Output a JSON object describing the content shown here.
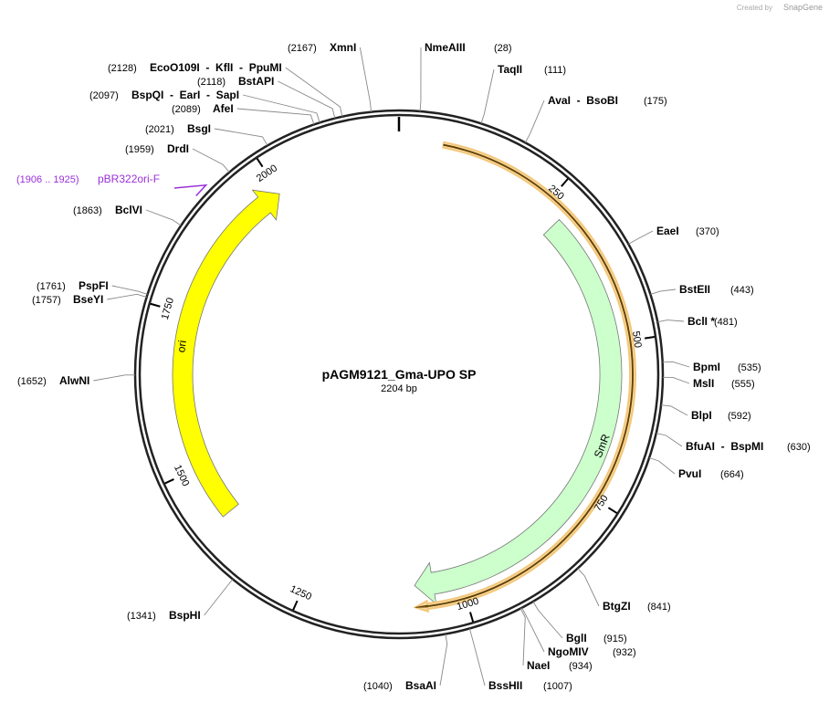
{
  "watermark": {
    "prefix": "Created by",
    "brand": "SnapGene"
  },
  "plasmid": {
    "name": "pAGM9121_Gma-UPO SP",
    "length_label": "2204 bp",
    "length": 2204,
    "ticks": [
      250,
      500,
      750,
      1000,
      1250,
      1500,
      1750,
      2000
    ]
  },
  "features": [
    {
      "name": "ori"
    },
    {
      "name": "SmR"
    }
  ],
  "primers": [
    {
      "name": "pBR322ori-F",
      "range": "(1906 .. 1925)",
      "start": 1906,
      "end": 1925
    }
  ],
  "sites": [
    {
      "name": "NmeAIII",
      "position": {
        "value": 28,
        "label": "(28)"
      }
    },
    {
      "name": "TaqII",
      "position": {
        "value": 111,
        "label": "(111)"
      }
    },
    {
      "name": "AvaI  -  BsoBI",
      "position": {
        "value": 175,
        "label": "(175)"
      }
    },
    {
      "name": "EaeI",
      "position": {
        "value": 370,
        "label": "(370)"
      }
    },
    {
      "name": "BstEII",
      "position": {
        "value": 443,
        "label": "(443)"
      }
    },
    {
      "name": "BclI *",
      "position": {
        "value": 481,
        "label": "(481)"
      }
    },
    {
      "name": "BpmI",
      "position": {
        "value": 535,
        "label": "(535)"
      }
    },
    {
      "name": "MslI",
      "position": {
        "value": 555,
        "label": "(555)"
      }
    },
    {
      "name": "BlpI",
      "position": {
        "value": 592,
        "label": "(592)"
      }
    },
    {
      "name": "BfuAI  -  BspMI",
      "position": {
        "value": 630,
        "label": "(630)"
      }
    },
    {
      "name": "PvuI",
      "position": {
        "value": 664,
        "label": "(664)"
      }
    },
    {
      "name": "BtgZI",
      "position": {
        "value": 841,
        "label": "(841)"
      }
    },
    {
      "name": "BglI",
      "position": {
        "value": 915,
        "label": "(915)"
      }
    },
    {
      "name": "NgoMIV",
      "position": {
        "value": 932,
        "label": "(932)"
      }
    },
    {
      "name": "NaeI",
      "position": {
        "value": 934,
        "label": "(934)"
      }
    },
    {
      "name": "BssHII",
      "position": {
        "value": 1007,
        "label": "(1007)"
      }
    },
    {
      "name": "BsaAI",
      "position": {
        "value": 1040,
        "label": "(1040)"
      }
    },
    {
      "name": "BspHI",
      "position": {
        "value": 1341,
        "label": "(1341)"
      }
    },
    {
      "name": "AlwNI",
      "position": {
        "value": 1652,
        "label": "(1652)"
      }
    },
    {
      "name": "BseYI",
      "position": {
        "value": 1757,
        "label": "(1757)"
      }
    },
    {
      "name": "PspFI",
      "position": {
        "value": 1761,
        "label": "(1761)"
      }
    },
    {
      "name": "BclVI",
      "position": {
        "value": 1863,
        "label": "(1863)"
      }
    },
    {
      "name": "DrdI",
      "position": {
        "value": 1959,
        "label": "(1959)"
      }
    },
    {
      "name": "BsgI",
      "position": {
        "value": 2021,
        "label": "(2021)"
      }
    },
    {
      "name": "AfeI",
      "position": {
        "value": 2089,
        "label": "(2089)"
      }
    },
    {
      "name": "BspQI  -  EarI  -  SapI",
      "position": {
        "value": 2097,
        "label": "(2097)"
      }
    },
    {
      "name": "BstAPI",
      "position": {
        "value": 2118,
        "label": "(2118)"
      }
    },
    {
      "name": "EcoO109I  -  KflI  -  PpuMI",
      "position": {
        "value": 2128,
        "label": "(2128)"
      }
    },
    {
      "name": "XmnI",
      "position": {
        "value": 2167,
        "label": "(2167)"
      }
    }
  ]
}
